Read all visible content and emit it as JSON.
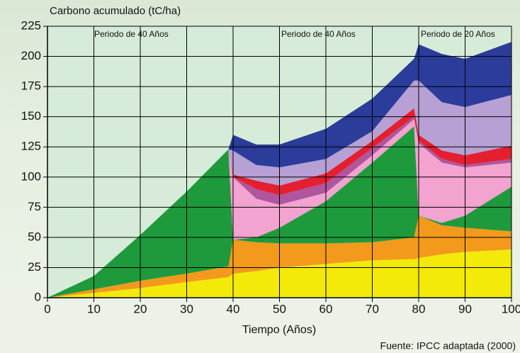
{
  "chart_data": {
    "type": "stacked-area",
    "ylabel": "Carbono acumulado (tC/ha)",
    "xlabel": "Tiempo (Años)",
    "annotations": [
      "Periodo de 40 Años",
      "Periodo de 40 Años",
      "Periodo de 20 Años"
    ],
    "source": "Fuente: IPCC adaptada (2000)",
    "x": [
      0,
      10,
      20,
      30,
      39,
      40,
      45,
      50,
      60,
      70,
      79,
      80,
      85,
      90,
      100
    ],
    "series": [
      {
        "color": "#f3ea0a",
        "values": [
          0,
          4,
          8,
          13,
          17,
          20,
          22,
          25,
          28,
          31,
          32,
          33,
          36,
          38,
          40
        ]
      },
      {
        "color": "#f39a1c",
        "values": [
          0,
          3,
          6,
          7,
          9,
          28,
          24,
          20,
          17,
          15,
          18,
          35,
          24,
          20,
          15
        ]
      },
      {
        "color": "#1e9a3c",
        "values": [
          0,
          11,
          38,
          68,
          97,
          0,
          4,
          13,
          35,
          66,
          92,
          0,
          2,
          10,
          37
        ]
      },
      {
        "color": "#f2a3cf",
        "values": [
          0,
          0,
          0,
          0,
          0,
          52,
          32,
          19,
          7,
          6,
          6,
          60,
          50,
          40,
          20
        ]
      },
      {
        "color": "#b0559e",
        "values": [
          0,
          0,
          0,
          0,
          0,
          0,
          8,
          8,
          8,
          6,
          2,
          2,
          3,
          2,
          3
        ]
      },
      {
        "color": "#e41f30",
        "values": [
          0,
          0,
          0,
          0,
          0,
          2,
          7,
          8,
          8,
          6,
          7,
          5,
          7,
          8,
          11
        ]
      },
      {
        "color": "#b7a0d4",
        "values": [
          0,
          0,
          0,
          0,
          0,
          20,
          13,
          15,
          12,
          8,
          23,
          45,
          40,
          40,
          42
        ]
      },
      {
        "color": "#2b3c9a",
        "values": [
          0,
          0,
          0,
          0,
          0,
          13,
          17,
          19,
          25,
          27,
          18,
          30,
          40,
          40,
          44
        ]
      }
    ],
    "xlim": [
      0,
      100
    ],
    "xticks": [
      0,
      10,
      20,
      30,
      40,
      50,
      60,
      70,
      80,
      90,
      100
    ],
    "ylim": [
      0,
      225
    ],
    "yticks": [
      0,
      25,
      50,
      75,
      100,
      125,
      150,
      175,
      200,
      225
    ],
    "grid": true
  }
}
